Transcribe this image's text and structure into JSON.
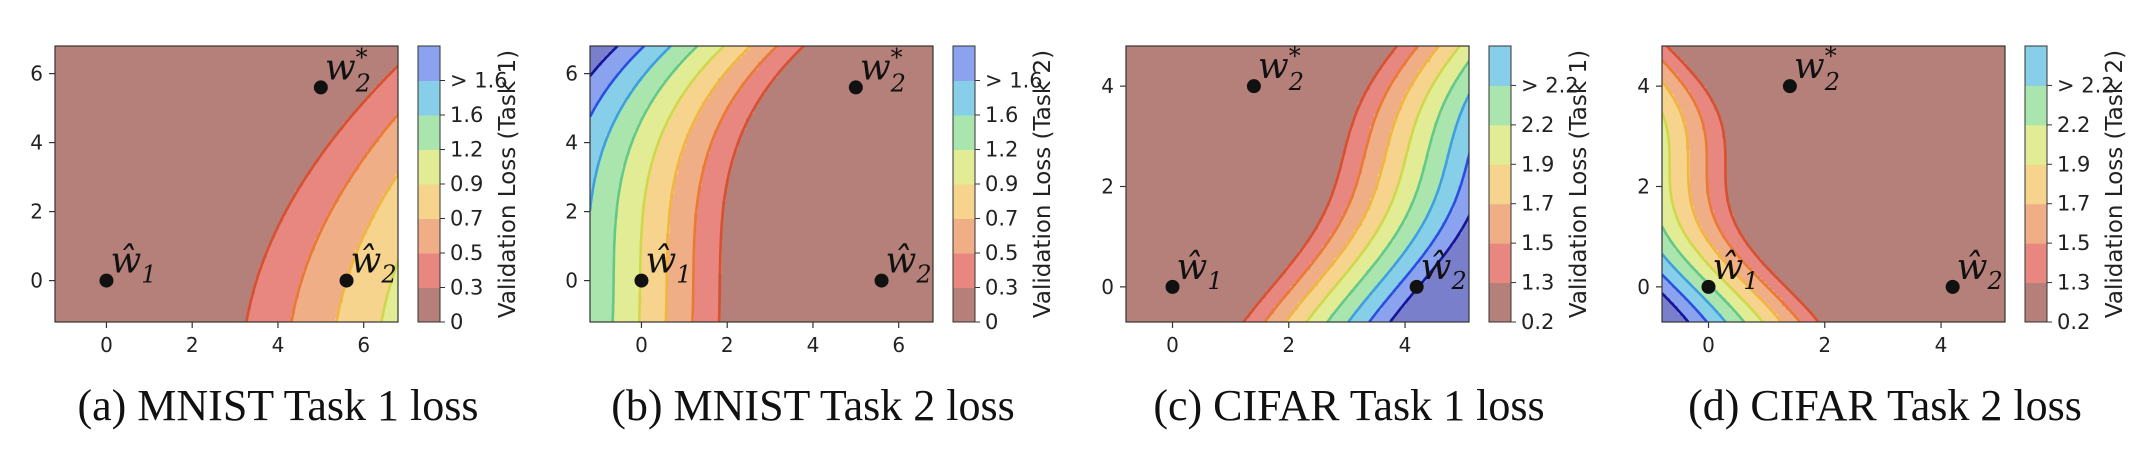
{
  "chart_data": [
    {
      "type": "contour",
      "caption": "(a) MNIST Task 1 loss",
      "colorbar_title": "Validation Loss (Task 1)",
      "colorbar_ticks": [
        "0",
        "0.3",
        "0.5",
        "0.7",
        "0.9",
        "1.2",
        "1.6",
        "> 1.6"
      ],
      "xlim": [
        -1.2,
        6.8
      ],
      "ylim": [
        -1.2,
        6.8
      ],
      "xticks": [
        0,
        2,
        4,
        6
      ],
      "yticks": [
        0,
        2,
        4,
        6
      ],
      "points": [
        {
          "label": "ŵ1",
          "x": 0,
          "y": 0
        },
        {
          "label": "w2*",
          "x": 5,
          "y": 5.6
        },
        {
          "label": "ŵ2",
          "x": 5.6,
          "y": 0
        }
      ],
      "field": {
        "kind": "mnist1"
      }
    },
    {
      "type": "contour",
      "caption": "(b) MNIST Task 2 loss",
      "colorbar_title": "Validation Loss (Task 2)",
      "colorbar_ticks": [
        "0",
        "0.3",
        "0.5",
        "0.7",
        "0.9",
        "1.2",
        "1.6",
        "> 1.6"
      ],
      "xlim": [
        -1.2,
        6.8
      ],
      "ylim": [
        -1.2,
        6.8
      ],
      "xticks": [
        0,
        2,
        4,
        6
      ],
      "yticks": [
        0,
        2,
        4,
        6
      ],
      "points": [
        {
          "label": "ŵ1",
          "x": 0,
          "y": 0
        },
        {
          "label": "w2*",
          "x": 5,
          "y": 5.6
        },
        {
          "label": "ŵ2",
          "x": 5.6,
          "y": 0
        }
      ],
      "field": {
        "kind": "mnist2"
      }
    },
    {
      "type": "contour",
      "caption": "(c) CIFAR Task 1 loss",
      "colorbar_title": "Validation Loss (Task 1)",
      "colorbar_ticks": [
        "0.2",
        "1.3",
        "1.5",
        "1.7",
        "1.9",
        "2.2",
        "> 2.2"
      ],
      "xlim": [
        -0.8,
        5.1
      ],
      "ylim": [
        -0.7,
        4.8
      ],
      "xticks": [
        0,
        2,
        4
      ],
      "yticks": [
        0,
        2,
        4
      ],
      "points": [
        {
          "label": "ŵ1",
          "x": 0,
          "y": 0
        },
        {
          "label": "w2*",
          "x": 1.4,
          "y": 4
        },
        {
          "label": "ŵ2",
          "x": 4.2,
          "y": 0
        }
      ],
      "field": {
        "kind": "cifar1"
      }
    },
    {
      "type": "contour",
      "caption": "(d) CIFAR Task 2 loss",
      "colorbar_title": "Validation Loss (Task 2)",
      "colorbar_ticks": [
        "0.2",
        "1.3",
        "1.5",
        "1.7",
        "1.9",
        "2.2",
        "> 2.2"
      ],
      "xlim": [
        -0.8,
        5.1
      ],
      "ylim": [
        -0.7,
        4.8
      ],
      "xticks": [
        0,
        2,
        4
      ],
      "yticks": [
        0,
        2,
        4
      ],
      "points": [
        {
          "label": "ŵ1",
          "x": 0,
          "y": 0
        },
        {
          "label": "w2*",
          "x": 1.4,
          "y": 4
        },
        {
          "label": "ŵ2",
          "x": 4.2,
          "y": 0
        }
      ],
      "field": {
        "kind": "cifar2"
      }
    }
  ],
  "colors": {
    "levels": [
      "#b58079",
      "#e8877f",
      "#f0ae86",
      "#f7d48d",
      "#e2ec94",
      "#a9e5ad",
      "#87cfe8",
      "#8ba2ee",
      "#7a7fcc"
    ],
    "lines": [
      "#bb3a2a",
      "#d8502f",
      "#ea7a32",
      "#f0b640",
      "#cfd84a",
      "#62c98a",
      "#3e9fe0",
      "#2a4fe0",
      "#14149a"
    ],
    "point": "#111111"
  }
}
